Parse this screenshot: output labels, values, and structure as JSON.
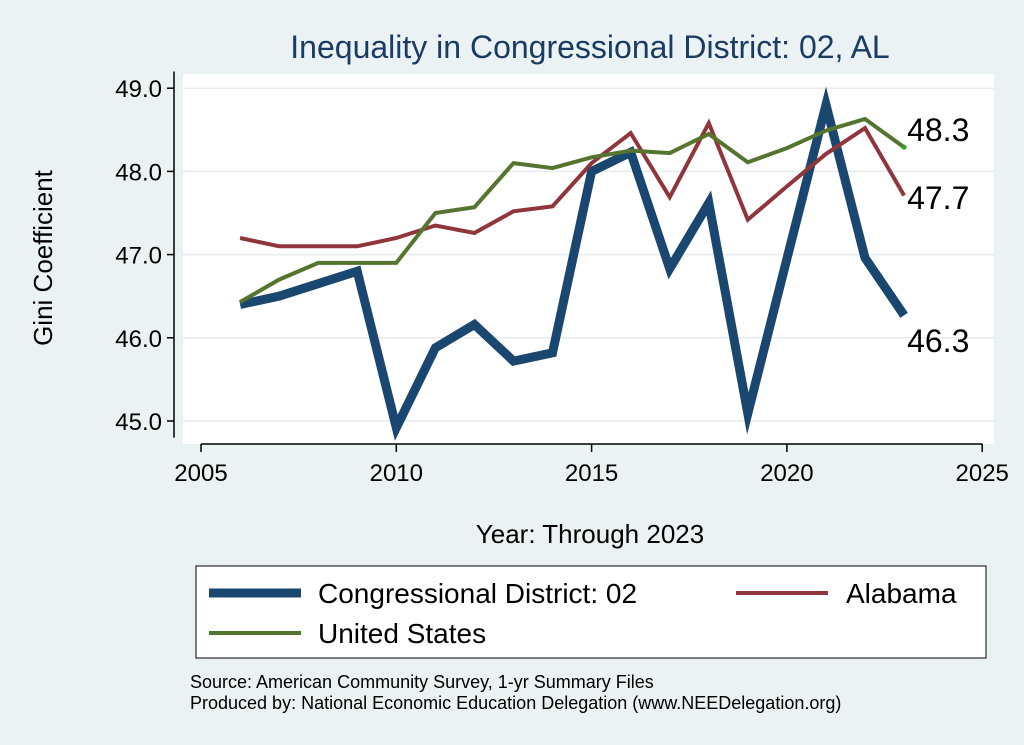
{
  "chart_data": {
    "type": "line",
    "title": "Inequality in Congressional District:  02, AL",
    "xlabel": "Year: Through 2023",
    "ylabel": "Gini Coefficient",
    "xlim": [
      2005,
      2025
    ],
    "ylim": [
      44.8,
      49.2
    ],
    "x_ticks": [
      2005,
      2010,
      2015,
      2020,
      2025
    ],
    "y_ticks": [
      45.0,
      46.0,
      47.0,
      48.0,
      49.0
    ],
    "x_tick_labels": [
      "2005",
      "2010",
      "2015",
      "2020",
      "2025"
    ],
    "y_tick_labels": [
      "45.0",
      "46.0",
      "47.0",
      "48.0",
      "49.0"
    ],
    "grid": true,
    "x": [
      2006,
      2007,
      2008,
      2009,
      2010,
      2011,
      2012,
      2013,
      2014,
      2015,
      2016,
      2017,
      2018,
      2019,
      2020,
      2021,
      2022,
      2023
    ],
    "series": [
      {
        "name": "Congressional District:  02",
        "color": "#1a476f",
        "values": [
          46.4,
          46.5,
          46.65,
          46.8,
          44.92,
          45.88,
          46.16,
          45.72,
          45.82,
          48.0,
          48.23,
          46.83,
          47.62,
          45.09,
          46.95,
          48.8,
          46.96,
          46.27
        ],
        "end_label": "46.3"
      },
      {
        "name": "Alabama",
        "color": "#90353b",
        "values": [
          47.2,
          47.1,
          47.1,
          47.1,
          47.2,
          47.35,
          47.26,
          47.52,
          47.58,
          48.1,
          48.46,
          47.69,
          48.58,
          47.42,
          47.82,
          48.21,
          48.52,
          47.71
        ],
        "end_label": "47.7"
      },
      {
        "name": "United States",
        "color": "#55752f",
        "values": [
          46.43,
          46.7,
          46.9,
          46.9,
          46.9,
          47.5,
          47.57,
          48.1,
          48.04,
          48.17,
          48.25,
          48.22,
          48.45,
          48.11,
          48.28,
          48.49,
          48.63,
          48.29
        ],
        "end_label": "48.3"
      }
    ],
    "legend": {
      "position": "bottom",
      "order": [
        0,
        1,
        2
      ]
    }
  },
  "notes": {
    "source": "Source: American Community Survey, 1-yr Summary Files",
    "produced_by": "Produced by: National Economic Education Delegation (www.NEEDelegation.org)"
  }
}
